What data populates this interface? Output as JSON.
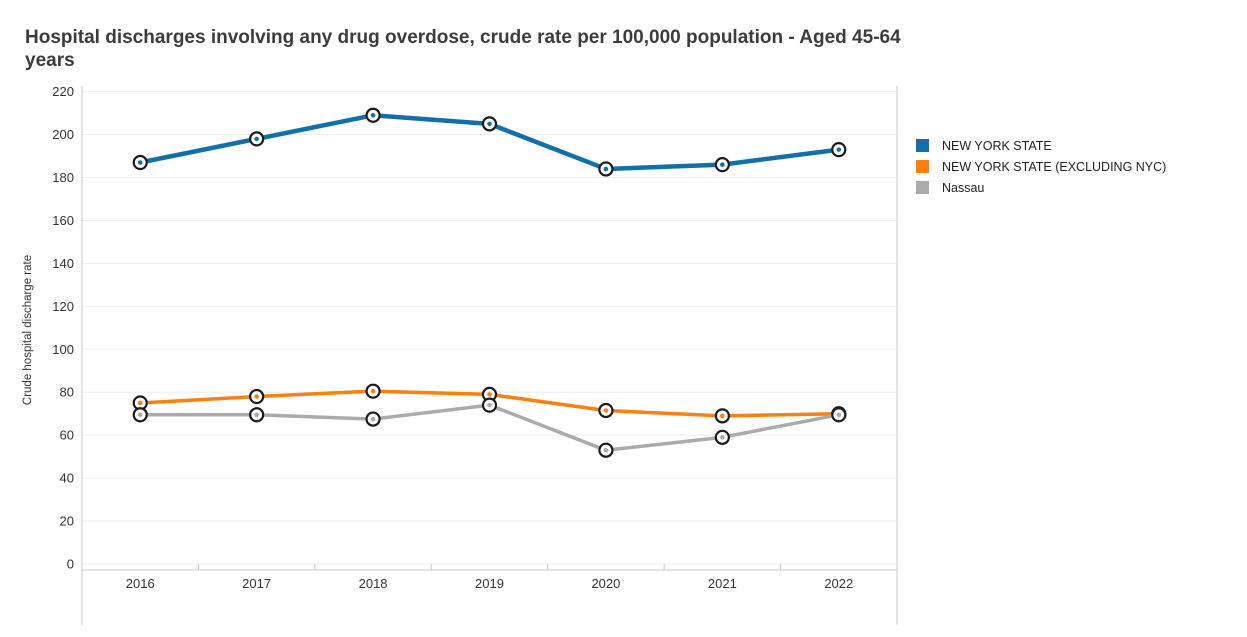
{
  "chart_data": {
    "type": "line",
    "title": "Hospital discharges involving any drug overdose, crude rate per 100,000 population - Aged 45-64 years",
    "ylabel": "Crude hospital discharge rate",
    "xlabel": "",
    "categories": [
      "2016",
      "2017",
      "2018",
      "2019",
      "2020",
      "2021",
      "2022"
    ],
    "series": [
      {
        "name": "NEW YORK STATE",
        "color": "#1170aa",
        "values": [
          187,
          198,
          209,
          205,
          184,
          186,
          193
        ]
      },
      {
        "name": "NEW YORK STATE (EXCLUDING NYC)",
        "color": "#fa8010",
        "values": [
          75,
          78,
          80.5,
          79,
          71.5,
          69,
          70
        ]
      },
      {
        "name": "Nassau",
        "color": "#ababab",
        "values": [
          69.5,
          69.5,
          67.5,
          74,
          53,
          59,
          69.5
        ]
      }
    ],
    "ylim": [
      0,
      220
    ],
    "yticks": [
      0,
      20,
      40,
      60,
      80,
      100,
      120,
      140,
      160,
      180,
      200,
      220
    ],
    "grid": "horizontal",
    "legend_position": "right",
    "marker": "open-circle",
    "colors": {
      "grid_line": "#ededed",
      "axis_line": "#c9c9c9",
      "tick_text": "#333333",
      "marker_ring": "#1a1a1a",
      "marker_fill": "#ffffff"
    }
  }
}
